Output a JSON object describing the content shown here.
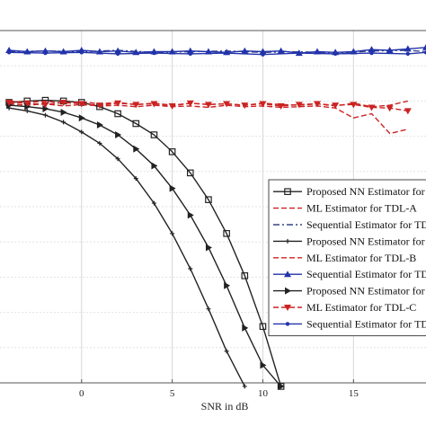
{
  "chart_data": {
    "type": "line",
    "xlabel": "SNR in dB",
    "ylabel": "",
    "xlim": [
      -4.5,
      19
    ],
    "ylim": [
      -3.5,
      1.5
    ],
    "xticks": [
      0,
      5,
      10,
      15
    ],
    "grid": true,
    "legend_position": "right",
    "series": [
      {
        "name": "Proposed NN Estimator for TDL-A",
        "color": "#222222",
        "line": "solid",
        "marker": "square",
        "x": [
          -4,
          -3,
          -2,
          -1,
          0,
          1,
          2,
          3,
          4,
          5,
          6,
          7,
          8,
          9,
          10,
          11
        ],
        "y": [
          0.48,
          0.5,
          0.51,
          0.5,
          0.48,
          0.42,
          0.32,
          0.18,
          0.02,
          -0.22,
          -0.52,
          -0.9,
          -1.38,
          -1.98,
          -2.7,
          -3.55
        ]
      },
      {
        "name": "ML Estimator for TDL-A",
        "color": "#cc2222",
        "line": "dashed",
        "marker": "none",
        "x": [
          -4,
          -3,
          -2,
          -1,
          0,
          1,
          2,
          3,
          4,
          5,
          6,
          7,
          8,
          9,
          10,
          11,
          12,
          13,
          14,
          15,
          16,
          17,
          18
        ],
        "y": [
          0.5,
          0.48,
          0.5,
          0.47,
          0.49,
          0.46,
          0.48,
          0.45,
          0.47,
          0.44,
          0.47,
          0.45,
          0.46,
          0.44,
          0.47,
          0.45,
          0.44,
          0.46,
          0.43,
          0.47,
          0.42,
          0.44,
          0.5
        ]
      },
      {
        "name": "Sequential Estimator for TDL-A",
        "color": "#334488",
        "line": "dashdot",
        "marker": "none",
        "x": [
          -4,
          -2,
          0,
          2,
          4,
          6,
          8,
          10,
          12,
          14,
          16,
          18,
          19
        ],
        "y": [
          1.2,
          1.21,
          1.2,
          1.22,
          1.19,
          1.2,
          1.21,
          1.19,
          1.2,
          1.18,
          1.21,
          1.22,
          1.2
        ]
      },
      {
        "name": "Proposed NN Estimator for TDL-B",
        "color": "#222222",
        "line": "solid",
        "marker": "plus",
        "x": [
          -4,
          -3,
          -2,
          -1,
          0,
          1,
          2,
          3,
          4,
          5,
          6,
          7,
          8,
          9
        ],
        "y": [
          0.4,
          0.36,
          0.3,
          0.2,
          0.06,
          -0.1,
          -0.32,
          -0.6,
          -0.95,
          -1.38,
          -1.88,
          -2.45,
          -3.05,
          -3.55
        ]
      },
      {
        "name": "ML Estimator for TDL-B",
        "color": "#cc2222",
        "line": "dashed",
        "marker": "none",
        "x": [
          -4,
          -3,
          -2,
          -1,
          0,
          1,
          2,
          3,
          4,
          5,
          6,
          7,
          8,
          9,
          10,
          11,
          12,
          13,
          14,
          15,
          16,
          17,
          18
        ],
        "y": [
          0.46,
          0.44,
          0.46,
          0.43,
          0.45,
          0.43,
          0.44,
          0.42,
          0.44,
          0.42,
          0.43,
          0.41,
          0.44,
          0.42,
          0.43,
          0.41,
          0.42,
          0.43,
          0.4,
          0.26,
          0.32,
          0.04,
          0.1
        ]
      },
      {
        "name": "Sequential Estimator for TDL-B",
        "color": "#2233aa",
        "line": "solid",
        "marker": "triangle",
        "x": [
          -4,
          -3,
          -2,
          -1,
          0,
          1,
          2,
          3,
          4,
          5,
          6,
          7,
          8,
          9,
          10,
          11,
          12,
          13,
          14,
          15,
          16,
          17,
          18,
          19
        ],
        "y": [
          1.22,
          1.2,
          1.21,
          1.2,
          1.22,
          1.2,
          1.21,
          1.19,
          1.2,
          1.2,
          1.21,
          1.2,
          1.19,
          1.21,
          1.2,
          1.21,
          1.18,
          1.2,
          1.19,
          1.2,
          1.23,
          1.22,
          1.24,
          1.26
        ]
      },
      {
        "name": "Proposed NN Estimator for TDL-C",
        "color": "#222222",
        "line": "solid",
        "marker": "triangle-right",
        "x": [
          -4,
          -3,
          -2,
          -1,
          0,
          1,
          2,
          3,
          4,
          5,
          6,
          7,
          8,
          9,
          10,
          11
        ],
        "y": [
          0.44,
          0.42,
          0.39,
          0.34,
          0.26,
          0.16,
          0.02,
          -0.18,
          -0.42,
          -0.74,
          -1.12,
          -1.58,
          -2.12,
          -2.72,
          -3.25,
          -3.55
        ]
      },
      {
        "name": "ML Estimator for TDL-C",
        "color": "#cc2222",
        "line": "dashed",
        "marker": "triangle-down",
        "x": [
          -4,
          -3,
          -2,
          -1,
          0,
          1,
          2,
          3,
          4,
          5,
          6,
          7,
          8,
          9,
          10,
          11,
          12,
          13,
          14,
          15,
          16,
          17,
          18
        ],
        "y": [
          0.48,
          0.47,
          0.45,
          0.48,
          0.46,
          0.44,
          0.47,
          0.45,
          0.46,
          0.43,
          0.47,
          0.45,
          0.46,
          0.44,
          0.46,
          0.43,
          0.45,
          0.46,
          0.44,
          0.45,
          0.41,
          0.4,
          0.36
        ]
      },
      {
        "name": "Sequential Estimator for TDL-C",
        "color": "#2233aa",
        "line": "solid",
        "marker": "dot",
        "x": [
          -4,
          -2,
          0,
          2,
          4,
          6,
          8,
          10,
          12,
          14,
          16,
          18,
          19
        ],
        "y": [
          1.19,
          1.18,
          1.19,
          1.17,
          1.18,
          1.17,
          1.18,
          1.16,
          1.18,
          1.17,
          1.18,
          1.17,
          1.19
        ]
      }
    ]
  }
}
